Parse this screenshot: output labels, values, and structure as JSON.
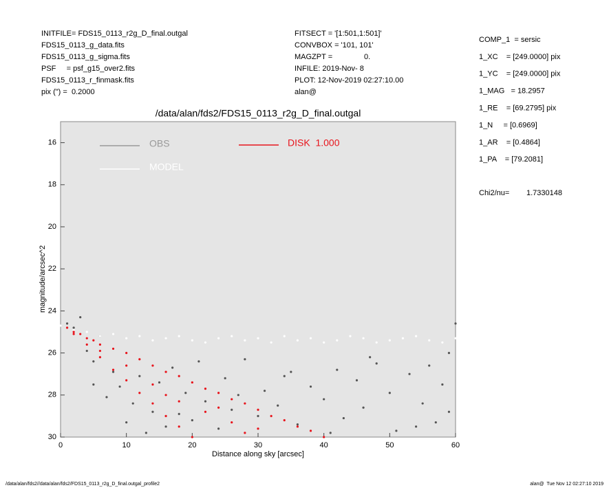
{
  "chart_data": {
    "type": "scatter",
    "header_left": [
      "INITFILE= FDS15_0113_r2g_D_final.outgal",
      "FDS15_0113_g_data.fits",
      "FDS15_0113_g_sigma.fits",
      "PSF     = psf_g15_over2.fits",
      "FDS15_0113_r_finmask.fits",
      "pix (\") =  0.2000"
    ],
    "header_mid": [
      "FITSECT = '[1:501,1:501]'",
      "CONVBOX = '101, 101'",
      "MAGZPT =               0.",
      "INFILE: 2019-Nov- 8",
      "PLOT: 12-Nov-2019 02:27:10.00",
      "alan@"
    ],
    "params": [
      "COMP_1  = sersic",
      "1_XC    = [249.0000] pix",
      "1_YC    = [249.0000] pix",
      "1_MAG   = 18.2957",
      "1_RE    = [69.2795] pix",
      "1_N     = [0.6969]",
      "1_AR    = [0.4864]",
      "1_PA    = [79.2081]"
    ],
    "chi2_label": "Chi2/nu=",
    "chi2_value": "1.7330148",
    "title": "/data/alan/fds2/FDS15_0113_r2g_D_final.outgal",
    "xlabel": "Distance along sky [arcsec]",
    "ylabel": "magnitude/arcsec^2",
    "footer_left": "/data/alan/fds2//data/alan/fds2/FDS15_0113_r2g_D_final.outgal_profile2",
    "footer_right": "alan@  Tue Nov 12 02:27:10 2019",
    "xlim": [
      0,
      60
    ],
    "xticks": [
      0,
      10,
      20,
      30,
      40,
      50,
      60
    ],
    "ylim": [
      15,
      30
    ],
    "y_inverted": true,
    "yticks": [
      16,
      18,
      20,
      22,
      24,
      26,
      28,
      30
    ],
    "background": "#e5e5e5",
    "series": [
      {
        "name": "OBS",
        "color": "#555555",
        "legend_color": "#999999",
        "x": [
          1,
          2,
          3,
          4,
          5,
          5,
          6,
          7,
          8,
          9,
          10,
          11,
          12,
          13,
          14,
          15,
          16,
          17,
          18,
          19,
          20,
          21,
          22,
          24,
          25,
          26,
          28,
          30,
          31,
          33,
          35,
          36,
          38,
          40,
          42,
          43,
          45,
          46,
          48,
          50,
          51,
          53,
          55,
          56,
          57,
          58,
          59,
          60,
          59,
          54,
          47,
          41,
          34,
          27
        ],
        "y": [
          24.6,
          24.8,
          24.3,
          25.9,
          26.4,
          27.5,
          25.2,
          28.1,
          26.9,
          27.6,
          29.3,
          28.4,
          27.1,
          29.8,
          28.8,
          27.4,
          29.5,
          26.7,
          28.9,
          27.9,
          29.2,
          26.4,
          28.3,
          29.6,
          27.2,
          28.7,
          26.3,
          29.0,
          27.8,
          28.5,
          26.9,
          29.4,
          27.6,
          28.2,
          26.8,
          29.1,
          27.3,
          28.6,
          26.5,
          27.9,
          29.7,
          27.0,
          28.4,
          26.6,
          29.3,
          27.5,
          26.0,
          24.6,
          28.8,
          29.5,
          26.2,
          29.8,
          27.1,
          28.0
        ]
      },
      {
        "name": "MODEL",
        "color": "#ffffff",
        "legend_color": "#ffffff",
        "x": [
          0,
          2,
          4,
          6,
          8,
          10,
          12,
          14,
          16,
          18,
          20,
          22,
          24,
          26,
          28,
          30,
          32,
          34,
          36,
          38,
          40,
          42,
          44,
          46,
          48,
          50,
          52,
          54,
          56,
          58,
          60
        ],
        "y": [
          24.7,
          24.9,
          25.0,
          25.2,
          25.1,
          25.3,
          25.2,
          25.4,
          25.3,
          25.2,
          25.4,
          25.5,
          25.3,
          25.2,
          25.4,
          25.3,
          25.5,
          25.2,
          25.4,
          25.3,
          25.5,
          25.4,
          25.2,
          25.3,
          25.5,
          25.4,
          25.3,
          25.2,
          25.4,
          25.5,
          25.3
        ]
      },
      {
        "name": "DISK  1.000",
        "color": "#e8141c",
        "legend_color": "#e8141c",
        "x": [
          1,
          2,
          3,
          4,
          5,
          6,
          8,
          10,
          12,
          14,
          16,
          18,
          20,
          22,
          24,
          26,
          28,
          30,
          32,
          34,
          36,
          38,
          40,
          2,
          4,
          6,
          8,
          10,
          12,
          14,
          16,
          18,
          20,
          6,
          10,
          14,
          18,
          22,
          26,
          30,
          16,
          24,
          28
        ],
        "y": [
          24.8,
          25.0,
          25.1,
          25.3,
          25.4,
          25.6,
          25.8,
          26.0,
          26.3,
          26.6,
          26.9,
          27.1,
          27.4,
          27.7,
          27.9,
          28.2,
          28.4,
          28.7,
          29.0,
          29.2,
          29.5,
          29.7,
          30.0,
          25.1,
          25.6,
          26.2,
          26.8,
          27.3,
          27.9,
          28.4,
          29.0,
          29.5,
          30.0,
          25.9,
          26.6,
          27.5,
          28.3,
          28.8,
          29.3,
          29.6,
          28.0,
          28.6,
          29.8
        ]
      }
    ]
  }
}
